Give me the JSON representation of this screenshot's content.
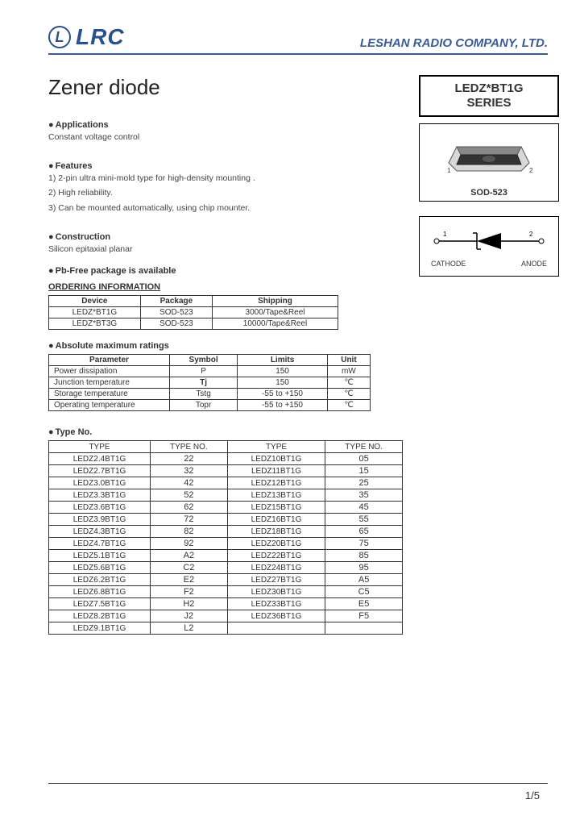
{
  "header": {
    "logo_letter": "L",
    "logo_text": "LRC",
    "company": "LESHAN RADIO COMPANY, LTD."
  },
  "title": "Zener diode",
  "series_box": {
    "line1": "LEDZ*BT1G",
    "line2": "SERIES"
  },
  "package_box": {
    "label": "SOD-523",
    "pin1": "1",
    "pin2": "2"
  },
  "symbol_box": {
    "left_num": "1",
    "left_label": "CATHODE",
    "right_num": "2",
    "right_label": "ANODE"
  },
  "applications": {
    "head": "Applications",
    "text": "Constant voltage control"
  },
  "features": {
    "head": "Features",
    "items": [
      "1) 2-pin ultra mini-mold type for high-density mounting .",
      "2) High reliability.",
      "3) Can be mounted automatically, using chip mounter."
    ]
  },
  "construction": {
    "head": "Construction",
    "text": "Silicon epitaxial planar"
  },
  "pbfree": "Pb-Free package is available",
  "ordering": {
    "head": "ORDERING INFORMATION",
    "cols": [
      "Device",
      "Package",
      "Shipping"
    ],
    "rows": [
      [
        "LEDZ*BT1G",
        "SOD-523",
        "3000/Tape&Reel"
      ],
      [
        "LEDZ*BT3G",
        "SOD-523",
        "10000/Tape&Reel"
      ]
    ]
  },
  "ratings": {
    "head": "Absolute maximum ratings",
    "cols": [
      "Parameter",
      "Symbol",
      "Limits",
      "Unit"
    ],
    "rows": [
      [
        "Power dissipation",
        "P",
        "150",
        "mW"
      ],
      [
        "Junction temperature",
        "Tj",
        "150",
        "℃"
      ],
      [
        "Storage temperature",
        "Tstg",
        "-55 to +150",
        "℃"
      ],
      [
        "Operating temperature",
        "Topr",
        "-55 to +150",
        "℃"
      ]
    ]
  },
  "types": {
    "head": "Type No.",
    "cols": [
      "TYPE",
      "TYPE  NO.",
      "TYPE",
      "TYPE  NO."
    ],
    "rows": [
      [
        "LEDZ2.4BT1G",
        "22",
        "LEDZ10BT1G",
        "05"
      ],
      [
        "LEDZ2.7BT1G",
        "32",
        "LEDZ11BT1G",
        "15"
      ],
      [
        "LEDZ3.0BT1G",
        "42",
        "LEDZ12BT1G",
        "25"
      ],
      [
        "LEDZ3.3BT1G",
        "52",
        "LEDZ13BT1G",
        "35"
      ],
      [
        "LEDZ3.6BT1G",
        "62",
        "LEDZ15BT1G",
        "45"
      ],
      [
        "LEDZ3.9BT1G",
        "72",
        "LEDZ16BT1G",
        "55"
      ],
      [
        "LEDZ4.3BT1G",
        "82",
        "LEDZ18BT1G",
        "65"
      ],
      [
        "LEDZ4.7BT1G",
        "92",
        "LEDZ20BT1G",
        "75"
      ],
      [
        "LEDZ5.1BT1G",
        "A2",
        "LEDZ22BT1G",
        "85"
      ],
      [
        "LEDZ5.6BT1G",
        "C2",
        "LEDZ24BT1G",
        "95"
      ],
      [
        "LEDZ6.2BT1G",
        "E2",
        "LEDZ27BT1G",
        "A5"
      ],
      [
        "LEDZ6.8BT1G",
        "F2",
        "LEDZ30BT1G",
        "C5"
      ],
      [
        "LEDZ7.5BT1G",
        "H2",
        "LEDZ33BT1G",
        "E5"
      ],
      [
        "LEDZ8.2BT1G",
        "J2",
        "LEDZ36BT1G",
        "F5"
      ],
      [
        "LEDZ9.1BT1G",
        "L2",
        "",
        ""
      ]
    ]
  },
  "page_num": "1/5",
  "colors": {
    "brand": "#2a5090",
    "rule": "#3a5a9a",
    "text": "#333333"
  }
}
